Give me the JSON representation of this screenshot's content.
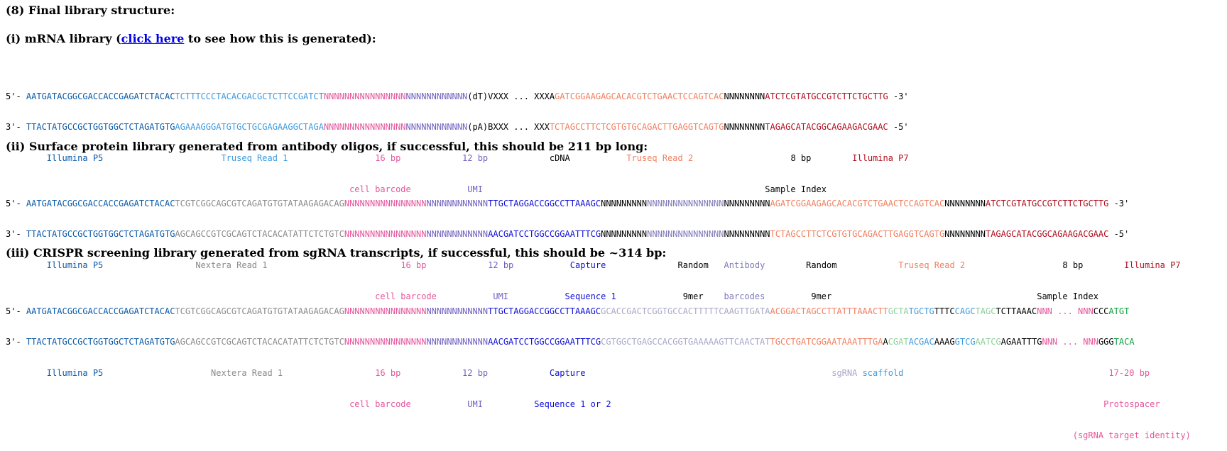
{
  "section8": {
    "title": "(8) Final library structure:"
  },
  "mrna": {
    "heading_before": "(i) mRNA library (",
    "heading_link": "click here",
    "heading_after": " to see how this is generated):",
    "top": [
      {
        "t": "5'- ",
        "c": "#000000"
      },
      {
        "t": "AATGATACGGCGACCACCGAGATCTACAC",
        "c": "#0a5aa8"
      },
      {
        "t": "TCTTTCCCTACACGACGCTCTTCCGATCT",
        "c": "#3d9be0"
      },
      {
        "t": "NNNNNNNNNNNNNNNN",
        "c": "#e4569b"
      },
      {
        "t": "NNNNNNNNNNNN",
        "c": "#7161c0"
      },
      {
        "t": "(dT)VXXX ... XXXA",
        "c": "#000000"
      },
      {
        "t": "GATCGGAAGAGCACACGTCTGAACTCCAGTCAC",
        "c": "#f08060"
      },
      {
        "t": "NNNNNNNN",
        "c": "#000000"
      },
      {
        "t": "ATCTCGTATGCCGTCTTCTGCTTG",
        "c": "#b01020"
      },
      {
        "t": " -3'",
        "c": "#000000"
      }
    ],
    "bottom": [
      {
        "t": "3'- ",
        "c": "#000000"
      },
      {
        "t": "TTACTATGCCGCTGGTGGCTCTAGATGTG",
        "c": "#0a5aa8"
      },
      {
        "t": "AGAAAGGGATGTGCTGCGAGAAGGCTAGA",
        "c": "#3d9be0"
      },
      {
        "t": "NNNNNNNNNNNNNNNN",
        "c": "#e4569b"
      },
      {
        "t": "NNNNNNNNNNNN",
        "c": "#7161c0"
      },
      {
        "t": "(pA)BXXX ... XXX",
        "c": "#000000"
      },
      {
        "t": "TCTAGCCTTCTCGTGTGCAGACTTGAGGTCAGTG",
        "c": "#f08060"
      },
      {
        "t": "NNNNNNNN",
        "c": "#000000"
      },
      {
        "t": "TAGAGCATACGGCAGAAGACGAAC",
        "c": "#b01020"
      },
      {
        "t": " -5'",
        "c": "#000000"
      }
    ],
    "labels1": [
      {
        "t": "Illumina P5",
        "c": "#0a5aa8",
        "col": 8
      },
      {
        "t": "Truseq Read 1",
        "c": "#3d9be0",
        "col": 42
      },
      {
        "t": "16 bp",
        "c": "#e4569b",
        "col": 72
      },
      {
        "t": "12 bp",
        "c": "#7161c0",
        "col": 89
      },
      {
        "t": "cDNA",
        "c": "#000000",
        "col": 106
      },
      {
        "t": "Truseq Read 2",
        "c": "#f08060",
        "col": 121
      },
      {
        "t": "8 bp",
        "c": "#000000",
        "col": 153
      },
      {
        "t": "Illumina P7",
        "c": "#b01020",
        "col": 165
      }
    ],
    "labels2": [
      {
        "t": "cell barcode",
        "c": "#e4569b",
        "col": 67
      },
      {
        "t": "UMI",
        "c": "#7161c0",
        "col": 90
      },
      {
        "t": "Sample Index",
        "c": "#000000",
        "col": 148
      }
    ]
  },
  "protein": {
    "heading": "(ii) Surface protein library generated from antibody oligos, if successful, this should be 211 bp long:",
    "top": [
      {
        "t": "5'- ",
        "c": "#000000"
      },
      {
        "t": "AATGATACGGCGACCACCGAGATCTACAC",
        "c": "#0a5aa8"
      },
      {
        "t": "TCGTCGGCAGCGTCAGATGTGTATAAGAGACAG",
        "c": "#8a8a8a"
      },
      {
        "t": "NNNNNNNNNNNNNNNN",
        "c": "#e4569b"
      },
      {
        "t": "NNNNNNNNNNNN",
        "c": "#7161c0"
      },
      {
        "t": "TTGCTAGGACCGGCCTTAAAGC",
        "c": "#1010d8"
      },
      {
        "t": "NNNNNNNNN",
        "c": "#000000"
      },
      {
        "t": "NNNNNNNNNNNNNNN",
        "c": "#7e7ab8"
      },
      {
        "t": "NNNNNNNNN",
        "c": "#000000"
      },
      {
        "t": "AGATCGGAAGAGCACACGTCTGAACTCCAGTCAC",
        "c": "#f08060"
      },
      {
        "t": "NNNNNNNN",
        "c": "#000000"
      },
      {
        "t": "ATCTCGTATGCCGTCTTCTGCTTG",
        "c": "#b01020"
      },
      {
        "t": " -3'",
        "c": "#000000"
      }
    ],
    "bottom": [
      {
        "t": "3'- ",
        "c": "#000000"
      },
      {
        "t": "TTACTATGCCGCTGGTGGCTCTAGATGTG",
        "c": "#0a5aa8"
      },
      {
        "t": "AGCAGCCGTCGCAGTCTACACATATTCTCTGTC",
        "c": "#8a8a8a"
      },
      {
        "t": "NNNNNNNNNNNNNNNN",
        "c": "#e4569b"
      },
      {
        "t": "NNNNNNNNNNNN",
        "c": "#7161c0"
      },
      {
        "t": "AACGATCCTGGCCGGAATTTCG",
        "c": "#1010d8"
      },
      {
        "t": "NNNNNNNNN",
        "c": "#000000"
      },
      {
        "t": "NNNNNNNNNNNNNNN",
        "c": "#7e7ab8"
      },
      {
        "t": "NNNNNNNNN",
        "c": "#000000"
      },
      {
        "t": "TCTAGCCTTCTCGTGTGCAGACTTGAGGTCAGTG",
        "c": "#f08060"
      },
      {
        "t": "NNNNNNNN",
        "c": "#000000"
      },
      {
        "t": "TAGAGCATACGGCAGAAGACGAAC",
        "c": "#b01020"
      },
      {
        "t": " -5'",
        "c": "#000000"
      }
    ],
    "labels1": [
      {
        "t": "Illumina P5",
        "c": "#0a5aa8",
        "col": 8
      },
      {
        "t": "Nextera Read 1",
        "c": "#8a8a8a",
        "col": 37
      },
      {
        "t": "16 bp",
        "c": "#e4569b",
        "col": 77
      },
      {
        "t": "12 bp",
        "c": "#7161c0",
        "col": 94
      },
      {
        "t": "Capture",
        "c": "#1010d8",
        "col": 110
      },
      {
        "t": "Random",
        "c": "#000000",
        "col": 131
      },
      {
        "t": "Antibody",
        "c": "#7e7ab8",
        "col": 140
      },
      {
        "t": "Random",
        "c": "#000000",
        "col": 156
      },
      {
        "t": "Truseq Read 2",
        "c": "#f08060",
        "col": 174
      },
      {
        "t": "8 bp",
        "c": "#000000",
        "col": 206
      },
      {
        "t": "Illumina P7",
        "c": "#b01020",
        "col": 218
      }
    ],
    "labels2": [
      {
        "t": "cell barcode",
        "c": "#e4569b",
        "col": 72
      },
      {
        "t": "UMI",
        "c": "#7161c0",
        "col": 95
      },
      {
        "t": "Sequence 1",
        "c": "#1010d8",
        "col": 109
      },
      {
        "t": "9mer",
        "c": "#000000",
        "col": 132
      },
      {
        "t": "barcodes",
        "c": "#7e7ab8",
        "col": 140
      },
      {
        "t": "9mer",
        "c": "#000000",
        "col": 157
      },
      {
        "t": "Sample Index",
        "c": "#000000",
        "col": 201
      }
    ]
  },
  "crispr": {
    "heading": "(iii) CRISPR screening library generated from sgRNA transcripts, if successful, this should be ~314 bp:",
    "top": [
      {
        "t": "5'- ",
        "c": "#000000"
      },
      {
        "t": "AATGATACGGCGACCACCGAGATCTACAC",
        "c": "#0a5aa8"
      },
      {
        "t": "TCGTCGGCAGCGTCAGATGTGTATAAGAGACAG",
        "c": "#8a8a8a"
      },
      {
        "t": "NNNNNNNNNNNNNNNN",
        "c": "#e4569b"
      },
      {
        "t": "NNNNNNNNNNNN",
        "c": "#7161c0"
      },
      {
        "t": "TTGCTAGGACCGGCCTTAAAGC",
        "c": "#1010d8"
      },
      {
        "t": "GCACCGACTCGGTGCCACTTTTTCAAGTTGATA",
        "c": "#a8a8c8"
      },
      {
        "t": "ACGGACTAGCCTTATTTAAACTT",
        "c": "#f08060"
      },
      {
        "t": "GCTA",
        "c": "#8ccf9a"
      },
      {
        "t": "TGCTG",
        "c": "#3d9be0"
      },
      {
        "t": "TTTC",
        "c": "#000000"
      },
      {
        "t": "CAGC",
        "c": "#3d9be0"
      },
      {
        "t": "TAGC",
        "c": "#8ccf9a"
      },
      {
        "t": "TCTTAAAC",
        "c": "#000000"
      },
      {
        "t": "NNN ... NNN",
        "c": "#e4569b"
      },
      {
        "t": "CCC",
        "c": "#000000"
      },
      {
        "t": "ATGT",
        "c": "#10a040"
      }
    ],
    "bottom": [
      {
        "t": "3'- ",
        "c": "#000000"
      },
      {
        "t": "TTACTATGCCGCTGGTGGCTCTAGATGTG",
        "c": "#0a5aa8"
      },
      {
        "t": "AGCAGCCGTCGCAGTCTACACATATTCTCTGTC",
        "c": "#8a8a8a"
      },
      {
        "t": "NNNNNNNNNNNNNNNN",
        "c": "#e4569b"
      },
      {
        "t": "NNNNNNNNNNNN",
        "c": "#7161c0"
      },
      {
        "t": "AACGATCCTGGCCGGAATTTCG",
        "c": "#1010d8"
      },
      {
        "t": "CGTGGCTGAGCCACGGTGAAAAAGTTCAACTAT",
        "c": "#a8a8c8"
      },
      {
        "t": "TGCCTGATCGGAATAAATTTGA",
        "c": "#f08060"
      },
      {
        "t": "A",
        "c": "#000000"
      },
      {
        "t": "CGAT",
        "c": "#8ccf9a"
      },
      {
        "t": "ACGAC",
        "c": "#3d9be0"
      },
      {
        "t": "AAAG",
        "c": "#000000"
      },
      {
        "t": "GTCG",
        "c": "#3d9be0"
      },
      {
        "t": "AATCG",
        "c": "#8ccf9a"
      },
      {
        "t": "AGAATTTG",
        "c": "#000000"
      },
      {
        "t": "NNN ... NNN",
        "c": "#e4569b"
      },
      {
        "t": "GGG",
        "c": "#000000"
      },
      {
        "t": "TACA",
        "c": "#10a040"
      }
    ],
    "labels1": [
      {
        "t": "Illumina P5",
        "c": "#0a5aa8",
        "col": 8
      },
      {
        "t": "Nextera Read 1",
        "c": "#8a8a8a",
        "col": 40
      },
      {
        "t": "16 bp",
        "c": "#e4569b",
        "col": 72
      },
      {
        "t": "12 bp",
        "c": "#7161c0",
        "col": 89
      },
      {
        "t": "Capture",
        "c": "#1010d8",
        "col": 106
      },
      {
        "t": "sgRNA",
        "c": "#a8a8c8",
        "col": 161
      },
      {
        "t": "scaffold",
        "c": "#3d9be0",
        "col": 167
      },
      {
        "t": "17-20 bp",
        "c": "#e4569b",
        "col": 215
      }
    ],
    "labels2": [
      {
        "t": "cell barcode",
        "c": "#e4569b",
        "col": 67
      },
      {
        "t": "UMI",
        "c": "#7161c0",
        "col": 90
      },
      {
        "t": "Sequence 1 or 2",
        "c": "#1010d8",
        "col": 103
      },
      {
        "t": "Protospacer",
        "c": "#e4569b",
        "col": 214
      }
    ],
    "labels3": [
      {
        "t": "(sgRNA target identity)",
        "c": "#e4569b",
        "col": 208
      }
    ]
  }
}
